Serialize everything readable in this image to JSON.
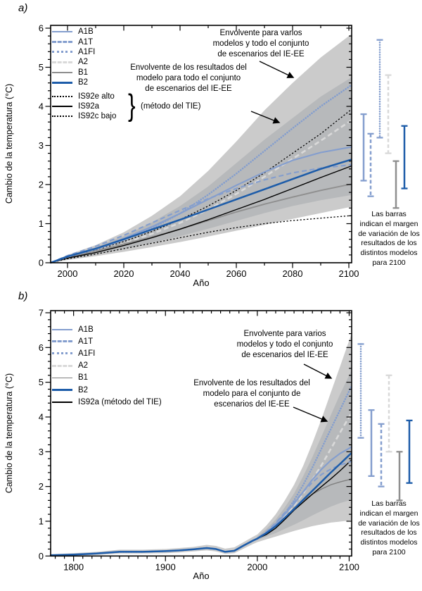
{
  "figure": {
    "background": "#ffffff",
    "accent_colors": {
      "a1_family_blue": "#849ECE",
      "a2_gray": "#D9D9D9",
      "b1_gray": "#8F8F8F",
      "b2_blue": "#1D5CA9",
      "black": "#000000",
      "envelope_outer": "#CBCBCB",
      "envelope_inner": "#B7B9BB"
    }
  },
  "chart_data": [
    {
      "type": "line",
      "panel": "a",
      "letter": "a)",
      "xlabel": "Año",
      "ylabel": "Cambio de la temperatura (°C)",
      "xlim": [
        1994,
        2101
      ],
      "ylim": [
        0,
        6.07
      ],
      "x_ticks": [
        2000,
        2020,
        2040,
        2060,
        2080,
        2100
      ],
      "x_minor_step": 10,
      "y_ticks": [
        0,
        1,
        2,
        3,
        4,
        5,
        6
      ],
      "y_minor_step": 0.2,
      "grid": false,
      "legend_position": "upper-left",
      "x": [
        1994,
        2000,
        2010,
        2020,
        2030,
        2040,
        2050,
        2060,
        2070,
        2080,
        2090,
        2100
      ],
      "envelopes": [
        {
          "name": "envolvente-varios-modelos-todos-escenarios",
          "color": "#CBCBCB",
          "years": [
            1994,
            2000,
            2010,
            2020,
            2030,
            2040,
            2050,
            2060,
            2070,
            2080,
            2090,
            2100
          ],
          "upper": [
            0,
            0.2,
            0.45,
            0.78,
            1.2,
            1.7,
            2.35,
            3.1,
            3.9,
            4.6,
            5.25,
            5.8
          ],
          "lower": [
            0,
            0.07,
            0.17,
            0.28,
            0.4,
            0.53,
            0.67,
            0.82,
            0.97,
            1.12,
            1.27,
            1.42
          ]
        },
        {
          "name": "envolvente-modelo-todos-escenarios-TIE",
          "color": "#B7B9BB",
          "years": [
            1994,
            2000,
            2010,
            2020,
            2030,
            2040,
            2050,
            2060,
            2070,
            2080,
            2090,
            2100
          ],
          "upper": [
            0,
            0.17,
            0.4,
            0.68,
            1.03,
            1.45,
            1.95,
            2.55,
            3.15,
            3.7,
            4.25,
            4.7
          ],
          "lower": [
            0,
            0.09,
            0.21,
            0.35,
            0.51,
            0.68,
            0.87,
            1.07,
            1.27,
            1.45,
            1.6,
            1.72
          ]
        }
      ],
      "series": [
        {
          "name": "IS92e alto",
          "color": "#000000",
          "style": "dotted-fine",
          "width": 1.3,
          "values": [
            0,
            0.14,
            0.32,
            0.54,
            0.8,
            1.1,
            1.45,
            1.85,
            2.3,
            2.8,
            3.3,
            3.87
          ]
        },
        {
          "name": "IS92c bajo",
          "color": "#000000",
          "style": "dotted-fine",
          "width": 1.3,
          "values": [
            0,
            0.1,
            0.22,
            0.36,
            0.5,
            0.64,
            0.78,
            0.9,
            1.0,
            1.08,
            1.14,
            1.2
          ]
        },
        {
          "name": "A2",
          "color": "#D9D9D9",
          "style": "dashed",
          "width": 2.6,
          "values": [
            0,
            0.14,
            0.3,
            0.5,
            0.74,
            1.02,
            1.36,
            1.76,
            2.2,
            2.66,
            3.12,
            3.6
          ]
        },
        {
          "name": "B1",
          "color": "#8F8F8F",
          "style": "solid",
          "width": 1.9,
          "values": [
            0,
            0.14,
            0.3,
            0.48,
            0.66,
            0.86,
            1.08,
            1.3,
            1.5,
            1.68,
            1.85,
            2.0
          ]
        },
        {
          "name": "IS92a",
          "color": "#000000",
          "style": "solid",
          "width": 1.4,
          "values": [
            0,
            0.12,
            0.26,
            0.44,
            0.64,
            0.86,
            1.1,
            1.36,
            1.62,
            1.9,
            2.18,
            2.45
          ]
        },
        {
          "name": "A1T",
          "color": "#849ECE",
          "style": "dashed",
          "width": 2.1,
          "values": [
            0,
            0.18,
            0.42,
            0.7,
            1.02,
            1.34,
            1.64,
            1.9,
            2.12,
            2.3,
            2.42,
            2.5
          ]
        },
        {
          "name": "A1FI",
          "color": "#849ECE",
          "style": "dotted-round",
          "width": 2.6,
          "values": [
            0,
            0.15,
            0.34,
            0.58,
            0.88,
            1.26,
            1.74,
            2.28,
            2.86,
            3.44,
            4.0,
            4.5
          ]
        },
        {
          "name": "A1B",
          "color": "#849ECE",
          "style": "solid",
          "width": 2.1,
          "values": [
            0,
            0.16,
            0.36,
            0.62,
            0.92,
            1.26,
            1.62,
            1.98,
            2.32,
            2.62,
            2.82,
            2.95
          ]
        },
        {
          "name": "B2",
          "color": "#1D5CA9",
          "style": "solid",
          "width": 2.5,
          "values": [
            0,
            0.16,
            0.36,
            0.6,
            0.85,
            1.1,
            1.36,
            1.62,
            1.88,
            2.14,
            2.4,
            2.62
          ]
        }
      ],
      "bars_2100": [
        {
          "name": "A1B",
          "color": "#849ECE",
          "style": "solid",
          "range": [
            2.1,
            3.8
          ]
        },
        {
          "name": "A1T",
          "color": "#849ECE",
          "style": "dashed",
          "range": [
            1.7,
            3.3
          ]
        },
        {
          "name": "A1FI",
          "color": "#849ECE",
          "style": "dotted-round",
          "range": [
            3.2,
            5.7
          ]
        },
        {
          "name": "A2",
          "color": "#D9D9D9",
          "style": "dashed",
          "range": [
            2.8,
            4.8
          ]
        },
        {
          "name": "B1",
          "color": "#8F8F8F",
          "style": "solid",
          "range": [
            1.4,
            2.6
          ]
        },
        {
          "name": "B2",
          "color": "#1D5CA9",
          "style": "solid",
          "range": [
            1.9,
            3.5
          ]
        }
      ],
      "legend": [
        {
          "label": "A1B",
          "color": "#849ECE",
          "style": "solid",
          "thick": 2
        },
        {
          "label": "A1T",
          "color": "#849ECE",
          "style": "dashed",
          "thick": 3
        },
        {
          "label": "A1FI",
          "color": "#849ECE",
          "style": "dotted",
          "thick": 3
        },
        {
          "label": "A2",
          "color": "#D9D9D9",
          "style": "dashed",
          "thick": 3
        },
        {
          "label": "B1",
          "color": "#8F8F8F",
          "style": "solid",
          "thick": 2
        },
        {
          "label": "B2",
          "color": "#1D5CA9",
          "style": "solid",
          "thick": 3
        },
        {
          "label": "IS92e alto",
          "color": "#000000",
          "style": "dotted",
          "thick": 2,
          "gap": true
        },
        {
          "label": "IS92a",
          "color": "#000000",
          "style": "solid",
          "thick": 2
        },
        {
          "label": "IS92c bajo",
          "color": "#000000",
          "style": "dotted",
          "thick": 2
        }
      ],
      "legend_group_brace": "}",
      "legend_group_label": "(método del TIE)",
      "annotations": [
        {
          "text": "Envolvente para varios\nmodelos y todo el conjunto\nde escenarios del IE-EE"
        },
        {
          "text": "Envolvente de los resultados del\nmodelo para todo el conjunto\nde escenarios del IE-EE"
        }
      ],
      "side_note": "Las barras\nindican el margen\nde variación de los\nresultados de los\ndistintos modelos\npara 2100"
    },
    {
      "type": "line",
      "panel": "b",
      "letter": "b)",
      "xlabel": "Año",
      "ylabel": "Cambio de la temperatura (°C)",
      "xlim": [
        1775,
        2102.5
      ],
      "ylim": [
        0,
        7.06
      ],
      "x_ticks": [
        1800,
        1900,
        2000,
        2100
      ],
      "x_minor_step": 10,
      "y_ticks": [
        0,
        1,
        2,
        3,
        4,
        5,
        6,
        7
      ],
      "y_minor_step": 0.2,
      "grid": false,
      "legend_position": "upper-left",
      "hist_x": [
        1775,
        1800,
        1825,
        1850,
        1875,
        1900,
        1915,
        1930,
        1945,
        1955,
        1965,
        1975,
        1985,
        1995,
        2000
      ],
      "hist_y": [
        0.02,
        0.04,
        0.07,
        0.12,
        0.12,
        0.14,
        0.16,
        0.19,
        0.23,
        0.2,
        0.12,
        0.15,
        0.3,
        0.44,
        0.5
      ],
      "proj_x": [
        2000,
        2010,
        2020,
        2030,
        2040,
        2050,
        2060,
        2070,
        2080,
        2090,
        2100
      ],
      "envelopes": [
        {
          "name": "envolvente-varios-modelos-todos-escenarios",
          "color": "#CBCBCB",
          "years": [
            1775,
            1800,
            1825,
            1850,
            1875,
            1900,
            1915,
            1930,
            1945,
            1955,
            1965,
            1975,
            1985,
            1995,
            2000,
            2010,
            2020,
            2030,
            2040,
            2050,
            2060,
            2070,
            2080,
            2090,
            2100
          ],
          "upper": [
            0.05,
            0.08,
            0.12,
            0.18,
            0.18,
            0.2,
            0.23,
            0.26,
            0.32,
            0.29,
            0.21,
            0.25,
            0.4,
            0.55,
            0.62,
            0.88,
            1.2,
            1.6,
            2.05,
            2.6,
            3.25,
            3.95,
            4.7,
            5.45,
            6.2
          ],
          "lower": [
            0.0,
            0.01,
            0.03,
            0.07,
            0.07,
            0.08,
            0.1,
            0.13,
            0.16,
            0.13,
            0.06,
            0.08,
            0.21,
            0.34,
            0.4,
            0.48,
            0.56,
            0.64,
            0.72,
            0.79,
            0.86,
            0.91,
            0.96,
            0.99,
            1.02
          ]
        },
        {
          "name": "envolvente-modelo-escenarios-IEEE",
          "color": "#B7B9BB",
          "years": [
            1997,
            2000,
            2010,
            2020,
            2030,
            2040,
            2050,
            2060,
            2070,
            2080,
            2090,
            2100
          ],
          "upper": [
            0.47,
            0.56,
            0.78,
            1.05,
            1.4,
            1.8,
            2.3,
            2.85,
            3.45,
            4.05,
            4.65,
            5.2
          ],
          "lower": [
            0.47,
            0.46,
            0.56,
            0.66,
            0.78,
            0.9,
            1.03,
            1.17,
            1.3,
            1.42,
            1.52,
            1.6
          ]
        }
      ],
      "series": [
        {
          "name": "A2",
          "color": "#D9D9D9",
          "style": "dashed",
          "width": 2.6,
          "values": [
            0.5,
            0.66,
            0.88,
            1.14,
            1.45,
            1.8,
            2.2,
            2.62,
            3.08,
            3.55,
            4.0
          ]
        },
        {
          "name": "B1",
          "color": "#808080",
          "style": "solid",
          "width": 1.4,
          "values": [
            0.5,
            0.65,
            0.85,
            1.1,
            1.38,
            1.6,
            1.78,
            1.93,
            2.05,
            2.13,
            2.2
          ]
        },
        {
          "name": "IS92a",
          "color": "#000000",
          "style": "solid",
          "width": 1.4,
          "values": [
            0.5,
            0.62,
            0.8,
            1.05,
            1.32,
            1.55,
            1.78,
            2.0,
            2.22,
            2.45,
            2.7
          ]
        },
        {
          "name": "A1T",
          "color": "#849ECE",
          "style": "dashed",
          "width": 2.1,
          "values": [
            0.5,
            0.7,
            0.95,
            1.25,
            1.55,
            1.85,
            2.12,
            2.35,
            2.5,
            2.62,
            2.7
          ]
        },
        {
          "name": "A1FI",
          "color": "#849ECE",
          "style": "dotted-round",
          "width": 2.6,
          "values": [
            0.5,
            0.68,
            0.92,
            1.22,
            1.6,
            2.05,
            2.55,
            3.1,
            3.65,
            4.2,
            4.75
          ]
        },
        {
          "name": "A1B",
          "color": "#849ECE",
          "style": "solid",
          "width": 2.1,
          "values": [
            0.5,
            0.68,
            0.92,
            1.2,
            1.5,
            1.85,
            2.2,
            2.5,
            2.75,
            2.95,
            3.1
          ]
        },
        {
          "name": "B2",
          "color": "#1D5CA9",
          "style": "solid",
          "width": 2.5,
          "values": [
            0.5,
            0.66,
            0.86,
            1.1,
            1.35,
            1.62,
            1.88,
            2.14,
            2.4,
            2.65,
            2.9
          ]
        }
      ],
      "bars_2100": [
        {
          "name": "A1FI",
          "color": "#849ECE",
          "style": "dotted-round",
          "range": [
            3.4,
            6.1
          ]
        },
        {
          "name": "A1B",
          "color": "#849ECE",
          "style": "solid",
          "range": [
            2.3,
            4.2
          ]
        },
        {
          "name": "A1T",
          "color": "#849ECE",
          "style": "dashed",
          "range": [
            2.0,
            3.8
          ]
        },
        {
          "name": "A2",
          "color": "#D9D9D9",
          "style": "dashed",
          "range": [
            3.0,
            5.2
          ]
        },
        {
          "name": "B1",
          "color": "#8F8F8F",
          "style": "solid",
          "range": [
            1.6,
            3.0
          ]
        },
        {
          "name": "B2",
          "color": "#1D5CA9",
          "style": "solid",
          "range": [
            2.1,
            3.9
          ]
        }
      ],
      "legend": [
        {
          "label": "A1B",
          "color": "#849ECE",
          "style": "solid",
          "thick": 2
        },
        {
          "label": "A1T",
          "color": "#849ECE",
          "style": "dashed",
          "thick": 3
        },
        {
          "label": "A1FI",
          "color": "#849ECE",
          "style": "dotted",
          "thick": 3
        },
        {
          "label": "A2",
          "color": "#D9D9D9",
          "style": "dashed",
          "thick": 3
        },
        {
          "label": "B1",
          "color": "#808080",
          "style": "solid",
          "thick": 1.5
        },
        {
          "label": "B2",
          "color": "#1D5CA9",
          "style": "solid",
          "thick": 3
        },
        {
          "label": "IS92a (método del TIE)",
          "color": "#000000",
          "style": "solid",
          "thick": 2
        }
      ],
      "annotations": [
        {
          "text": "Envolvente para varios\nmodelos y todo el conjunto\nde escenarios del IE-EE"
        },
        {
          "text": "Envolvente de los resultados del\nmodelo para el conjunto de\nescenarios del IE-EE"
        }
      ],
      "side_note": "Las barras\nindican el margen\nde variación de los\nresultados de los\ndistintos modelos\npara 2100"
    }
  ]
}
